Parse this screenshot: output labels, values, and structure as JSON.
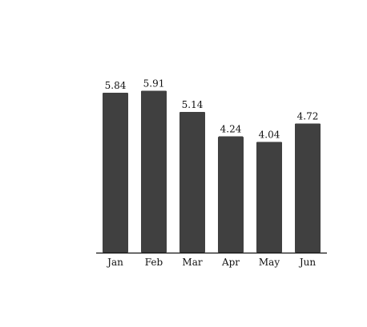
{
  "chart_data": {
    "type": "bar",
    "categories": [
      "Jan",
      "Feb",
      "Mar",
      "Apr",
      "May",
      "Jun"
    ],
    "values": [
      5.84,
      5.91,
      5.14,
      4.24,
      4.04,
      4.72
    ],
    "value_labels": [
      "5.84",
      "5.91",
      "5.14",
      "4.24",
      "4.04",
      "4.72"
    ],
    "title": "",
    "xlabel": "",
    "ylabel": "",
    "ylim": [
      0,
      6.5
    ],
    "grid": false,
    "legend": "none",
    "colors": {
      "bar": "#404040",
      "axis": "#111111",
      "text": "#111111"
    }
  }
}
